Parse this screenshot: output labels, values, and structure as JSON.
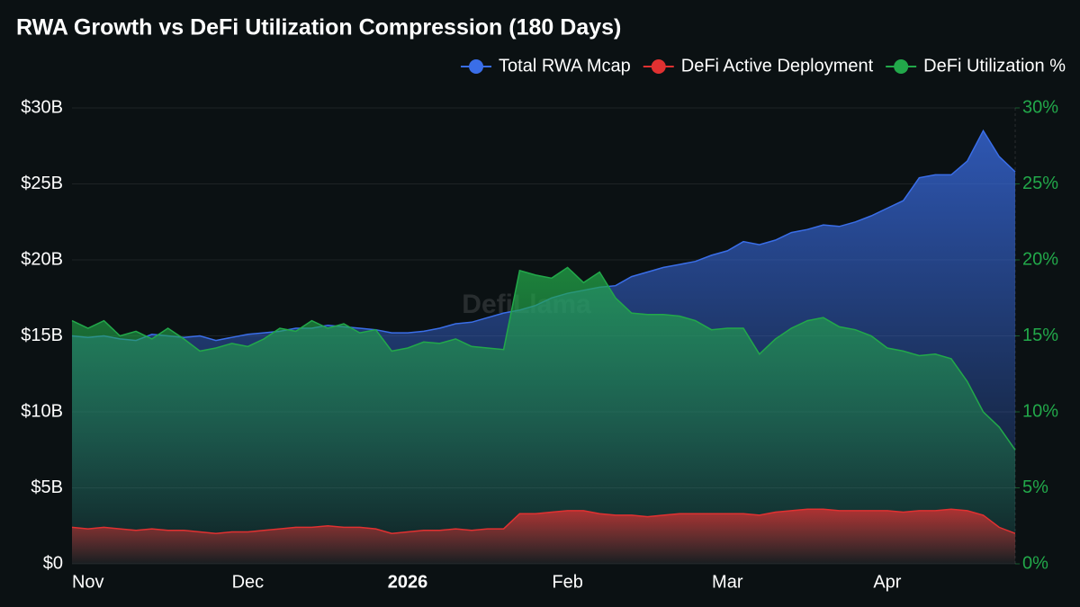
{
  "chart_data": {
    "type": "area",
    "title": "RWA Growth vs DeFi Utilization Compression (180 Days)",
    "watermark": "DefiLlama",
    "legend": "top-right",
    "grid": true,
    "categories": [
      null,
      "Nov",
      null,
      null,
      null,
      null,
      null,
      null,
      null,
      null,
      null,
      "Dec",
      null,
      null,
      null,
      null,
      null,
      null,
      null,
      null,
      null,
      "2026",
      null,
      null,
      null,
      null,
      null,
      null,
      null,
      null,
      null,
      "Feb",
      null,
      null,
      null,
      null,
      null,
      null,
      null,
      null,
      null,
      "Mar",
      null,
      null,
      null,
      null,
      null,
      null,
      null,
      null,
      null,
      "Apr",
      null,
      null,
      null,
      null,
      null,
      null,
      null,
      null
    ],
    "ylim": [
      0,
      30
    ],
    "yticks": [
      {
        "value": 0,
        "label": "$0"
      },
      {
        "value": 5,
        "label": "$5B"
      },
      {
        "value": 10,
        "label": "$10B"
      },
      {
        "value": 15,
        "label": "$15B"
      },
      {
        "value": 20,
        "label": "$20B"
      },
      {
        "value": 25,
        "label": "$25B"
      },
      {
        "value": 30,
        "label": "$30B"
      }
    ],
    "y2lim": [
      0,
      30
    ],
    "y2ticks": [
      {
        "value": 0,
        "label": "0%"
      },
      {
        "value": 5,
        "label": "5%"
      },
      {
        "value": 10,
        "label": "10%"
      },
      {
        "value": 15,
        "label": "15%"
      },
      {
        "value": 20,
        "label": "20%"
      },
      {
        "value": 25,
        "label": "25%"
      },
      {
        "value": 30,
        "label": "30%"
      }
    ],
    "series": [
      {
        "name": "Total RWA Mcap",
        "color": "#3a6ee8",
        "axis": "y",
        "values": [
          15.0,
          14.9,
          15.0,
          14.8,
          14.7,
          15.1,
          15.0,
          14.9,
          15.0,
          14.7,
          14.9,
          15.1,
          15.2,
          15.3,
          15.5,
          15.5,
          15.7,
          15.6,
          15.5,
          15.4,
          15.2,
          15.2,
          15.3,
          15.5,
          15.8,
          15.9,
          16.2,
          16.5,
          16.7,
          17.0,
          17.5,
          17.8,
          18.0,
          18.2,
          18.3,
          18.9,
          19.2,
          19.5,
          19.7,
          19.9,
          20.3,
          20.6,
          21.2,
          21.0,
          21.3,
          21.8,
          22.0,
          22.3,
          22.2,
          22.5,
          22.9,
          23.4,
          23.9,
          25.4,
          25.6,
          25.6,
          26.5,
          28.5,
          26.8,
          25.8
        ]
      },
      {
        "name": "DeFi Active Deployment",
        "color": "#e03131",
        "axis": "y",
        "values": [
          2.4,
          2.3,
          2.4,
          2.3,
          2.2,
          2.3,
          2.2,
          2.2,
          2.1,
          2.0,
          2.1,
          2.1,
          2.2,
          2.3,
          2.4,
          2.4,
          2.5,
          2.4,
          2.4,
          2.3,
          2.0,
          2.1,
          2.2,
          2.2,
          2.3,
          2.2,
          2.3,
          2.3,
          3.3,
          3.3,
          3.4,
          3.5,
          3.5,
          3.3,
          3.2,
          3.2,
          3.1,
          3.2,
          3.3,
          3.3,
          3.3,
          3.3,
          3.3,
          3.2,
          3.4,
          3.5,
          3.6,
          3.6,
          3.5,
          3.5,
          3.5,
          3.5,
          3.4,
          3.5,
          3.5,
          3.6,
          3.5,
          3.2,
          2.4,
          2.0
        ]
      },
      {
        "name": "DeFi Utilization %",
        "color": "#22a84a",
        "axis": "y2",
        "values": [
          16.0,
          15.5,
          16.0,
          15.0,
          15.3,
          14.8,
          15.5,
          14.8,
          14.0,
          14.2,
          14.5,
          14.3,
          14.8,
          15.5,
          15.3,
          16.0,
          15.5,
          15.8,
          15.2,
          15.4,
          14.0,
          14.2,
          14.6,
          14.5,
          14.8,
          14.3,
          14.2,
          14.1,
          19.3,
          19.0,
          18.8,
          19.5,
          18.5,
          19.2,
          17.5,
          16.5,
          16.4,
          16.4,
          16.3,
          16.0,
          15.4,
          15.5,
          15.5,
          13.8,
          14.8,
          15.5,
          16.0,
          16.2,
          15.6,
          15.4,
          15.0,
          14.2,
          14.0,
          13.7,
          13.8,
          13.5,
          12.0,
          10.0,
          9.0,
          7.5
        ]
      }
    ]
  }
}
